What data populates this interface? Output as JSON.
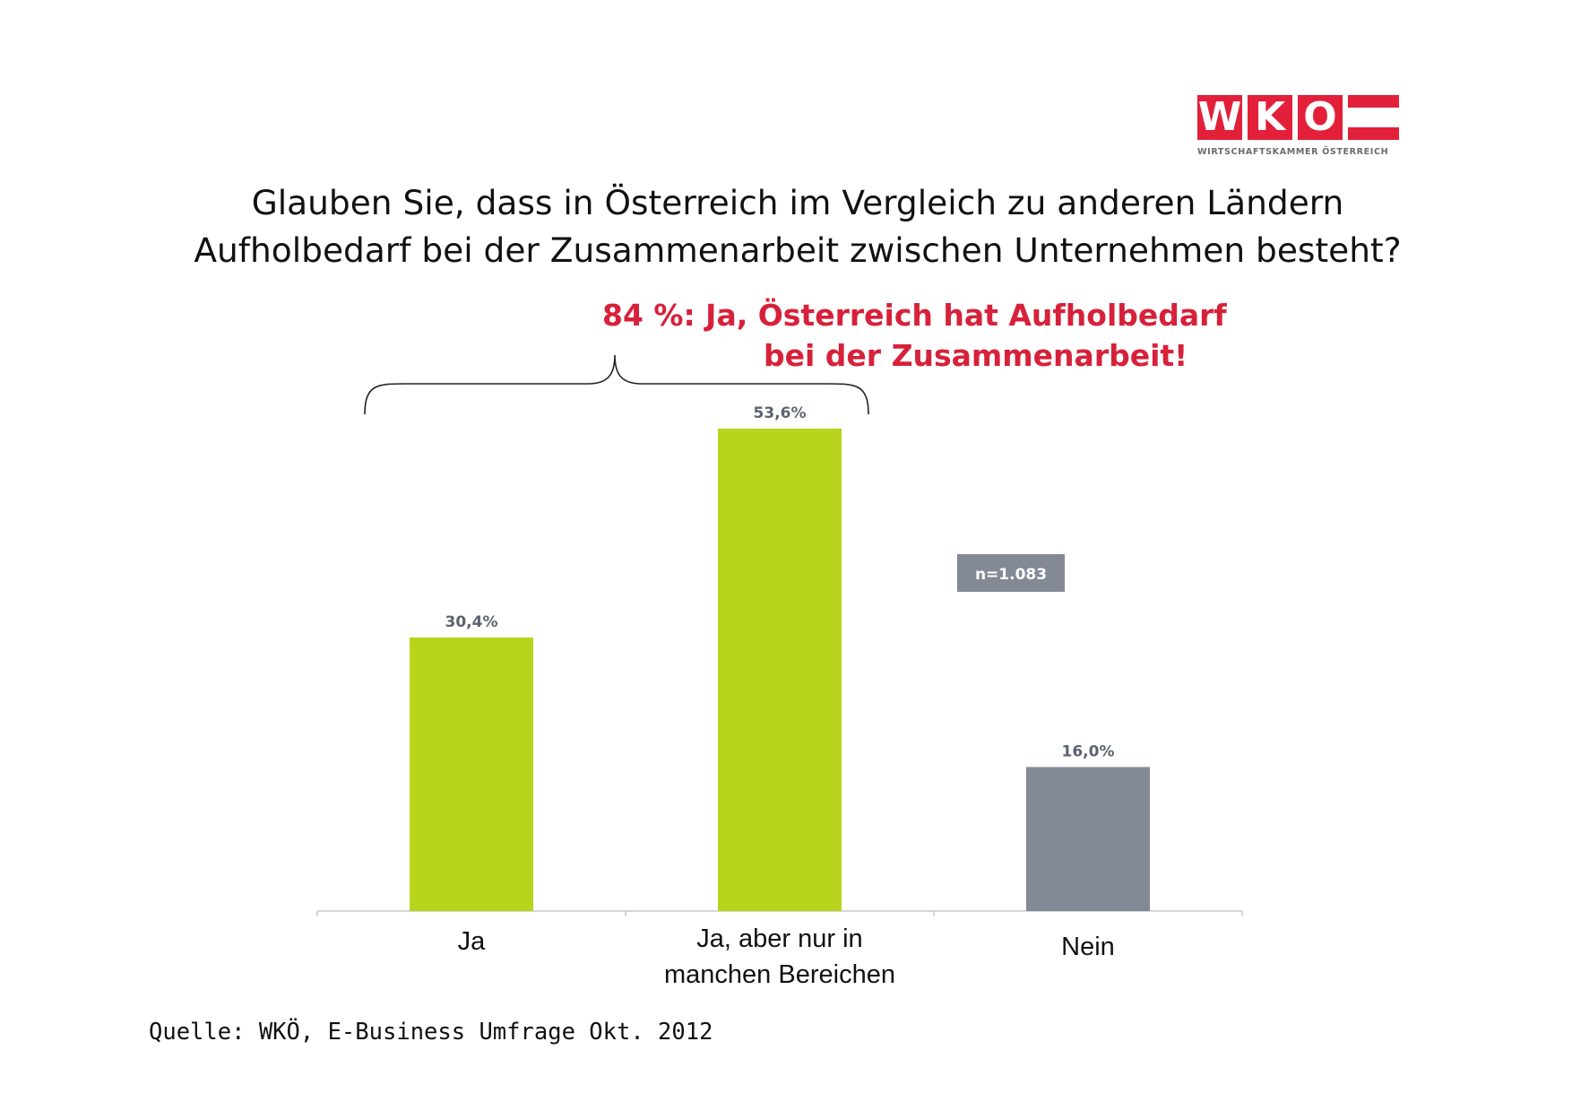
{
  "logo": {
    "letters": [
      "W",
      "K",
      "O"
    ],
    "subtitle": "WIRTSCHAFTSKAMMER ÖSTERREICH",
    "brand_color": "#e2203a"
  },
  "title_lines": [
    "Glauben Sie, dass in Österreich im Vergleich zu anderen Ländern",
    "Aufholbedarf bei der Zusammenarbeit zwischen Unternehmen besteht?"
  ],
  "highlight_lines": [
    "84 %: Ja, Österreich hat Aufholbedarf",
    "bei der Zusammenarbeit!"
  ],
  "sample_badge": "n=1.083",
  "source": "Quelle: WKÖ, E-Business Umfrage Okt. 2012",
  "chart_data": {
    "type": "bar",
    "categories": [
      "Ja",
      "Ja, aber nur in manchen Bereichen",
      "Nein"
    ],
    "category_label_lines": [
      [
        "Ja"
      ],
      [
        "Ja, aber nur in",
        "manchen Bereichen"
      ],
      [
        "Nein"
      ]
    ],
    "values": [
      30.4,
      53.6,
      16.0
    ],
    "value_labels": [
      "30,4%",
      "53,6%",
      "16,0%"
    ],
    "colors": [
      "#b8d41c",
      "#b8d41c",
      "#838a96"
    ],
    "ylim": [
      0,
      53.6
    ],
    "grid": false,
    "bracket_groups": [
      0,
      1
    ]
  }
}
